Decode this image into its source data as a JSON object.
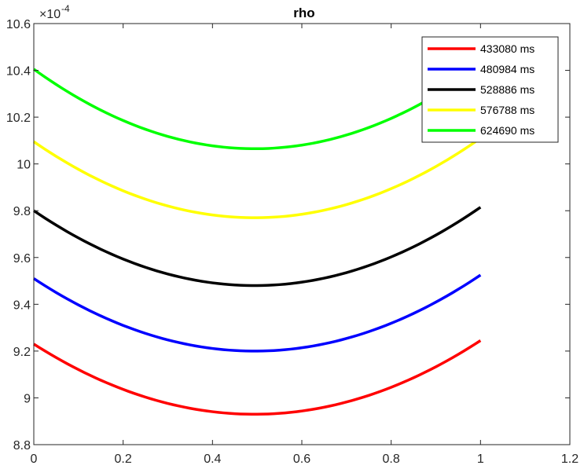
{
  "chart_data": {
    "type": "line",
    "title": "rho",
    "xlabel": "",
    "ylabel": "",
    "xlim": [
      0,
      1.2
    ],
    "ylim": [
      8.8,
      10.6
    ],
    "x_ticks": [
      "0",
      "0.2",
      "0.4",
      "0.6",
      "0.8",
      "1",
      "1.2"
    ],
    "y_ticks": [
      "8.8",
      "9",
      "9.2",
      "9.4",
      "9.6",
      "9.8",
      "10",
      "10.2",
      "10.4",
      "10.6"
    ],
    "y_multiplier": {
      "base": "×10",
      "exponent": "-4"
    },
    "grid": false,
    "legend_position": "top-right",
    "series": [
      {
        "name": "433080 ms",
        "color": "#ff0000",
        "x": [
          0,
          0.5,
          1
        ],
        "y": [
          9.23,
          8.93,
          9.245
        ]
      },
      {
        "name": "480984 ms",
        "color": "#0000ff",
        "x": [
          0,
          0.5,
          1
        ],
        "y": [
          9.51,
          9.2,
          9.525
        ]
      },
      {
        "name": "528886 ms",
        "color": "#000000",
        "x": [
          0,
          0.5,
          1
        ],
        "y": [
          9.8,
          9.48,
          9.815
        ]
      },
      {
        "name": "576788 ms",
        "color": "#ffff00",
        "x": [
          0,
          0.5,
          1
        ],
        "y": [
          10.095,
          9.77,
          10.11
        ]
      },
      {
        "name": "624690 ms",
        "color": "#00ff00",
        "x": [
          0,
          0.5,
          1
        ],
        "y": [
          10.405,
          10.065,
          10.42
        ]
      }
    ]
  }
}
